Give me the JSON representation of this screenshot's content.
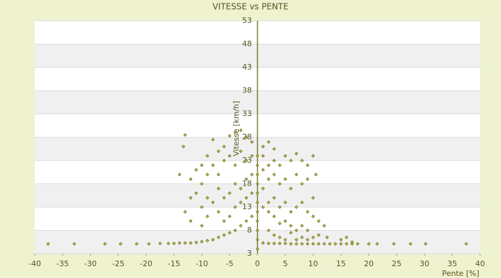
{
  "chart_data": {
    "type": "scatter",
    "title": "VITESSE vs PENTE",
    "x_label": "Pente [%]",
    "y_label": "Vitesse [km/h]",
    "xlim": [
      -40,
      40
    ],
    "xticks": [
      -40,
      -35,
      -30,
      -25,
      -20,
      -15,
      -10,
      -5,
      0,
      5,
      10,
      15,
      20,
      25,
      30,
      35,
      40
    ],
    "ylim": [
      3,
      53
    ],
    "yticks": [
      3,
      8,
      13,
      18,
      23,
      28,
      33,
      38,
      43,
      48,
      53
    ],
    "grid": true,
    "color": "#5b5b00",
    "series": [
      {
        "name": "Vitesse",
        "color": "#5b5b00",
        "x": [
          -37.6,
          -32.9,
          -27.4,
          -24.6,
          -21.7,
          -19.5,
          -17.5,
          -16,
          -15,
          -14,
          -13,
          -12,
          1,
          2,
          3,
          4,
          5,
          6,
          7,
          8,
          9,
          10,
          11,
          12,
          13,
          14,
          15,
          16,
          17,
          18,
          20,
          21.5,
          24.5,
          27.5,
          30.2,
          37.5,
          0,
          0,
          0,
          0,
          0,
          0,
          0,
          0,
          0,
          0,
          0,
          -13,
          -13.3,
          -8,
          -5,
          -4,
          -3,
          -2,
          -1,
          1,
          2,
          3,
          -6,
          -7,
          -9,
          -10,
          -11,
          -14,
          -12,
          -10,
          -9,
          -8,
          -7,
          -6,
          -5,
          -4,
          -3,
          -2,
          -1,
          1,
          2,
          3,
          4,
          5,
          6,
          7,
          8,
          9,
          10,
          10.5,
          9,
          8,
          7,
          6,
          5,
          4,
          3,
          2,
          1,
          -1,
          -2,
          -3,
          -4,
          -5,
          -6,
          -7,
          -8,
          -9,
          -10,
          -11,
          -12,
          -13,
          -12,
          -10,
          -9,
          -7,
          -6,
          -5,
          -4,
          -3,
          -2,
          -1,
          1,
          2,
          3,
          4,
          5,
          6,
          7,
          8,
          9,
          10,
          11,
          10,
          12,
          11,
          12.5,
          9,
          8,
          7,
          6,
          5,
          4,
          3,
          2,
          1,
          -1,
          -2,
          -3,
          -4,
          -5,
          -6,
          -7,
          -8,
          -9,
          -10,
          -11,
          2,
          3,
          4,
          5,
          6,
          7,
          8,
          9,
          10,
          16,
          17,
          15
        ],
        "y": [
          5.1,
          5.1,
          5.1,
          5.1,
          5.1,
          5.1,
          5.2,
          5.2,
          5.2,
          5.3,
          5.3,
          5.3,
          5.3,
          5.2,
          5.2,
          5.2,
          5.2,
          5.1,
          5.1,
          5.1,
          5.1,
          5.1,
          5.1,
          5.1,
          5.1,
          5.1,
          5.1,
          5.1,
          5.1,
          5.1,
          5.1,
          5.1,
          5.1,
          5.1,
          5.1,
          5.1,
          4,
          6,
          8,
          10,
          12,
          14,
          16,
          18,
          20,
          22,
          24,
          28.5,
          26,
          27.5,
          28.3,
          29,
          29.5,
          28,
          27,
          26,
          27,
          25.5,
          26,
          25,
          24,
          22,
          21,
          20,
          19,
          18,
          20,
          22,
          20,
          23,
          24,
          22,
          25,
          23,
          24,
          24,
          22,
          23,
          22,
          24,
          23,
          24.5,
          23,
          22,
          24,
          20,
          19,
          18,
          20,
          17,
          19,
          18,
          20,
          19,
          21,
          20,
          19,
          17,
          18,
          16,
          15,
          17,
          14,
          15,
          13,
          16,
          15,
          12,
          10,
          9,
          11,
          12,
          10,
          11,
          13,
          14,
          15,
          16,
          17,
          14,
          15,
          13,
          14,
          12,
          13,
          14,
          12,
          11,
          10,
          15,
          9,
          7,
          6.5,
          8,
          9,
          8,
          9,
          10,
          9.5,
          11,
          12,
          13,
          11,
          10,
          9,
          8,
          7.5,
          7,
          6.5,
          6,
          5.8,
          5.6,
          5.4,
          8,
          7,
          6.5,
          6,
          7.5,
          6,
          6.5,
          6,
          6.5,
          6.5,
          5.5,
          6
        ]
      }
    ]
  }
}
